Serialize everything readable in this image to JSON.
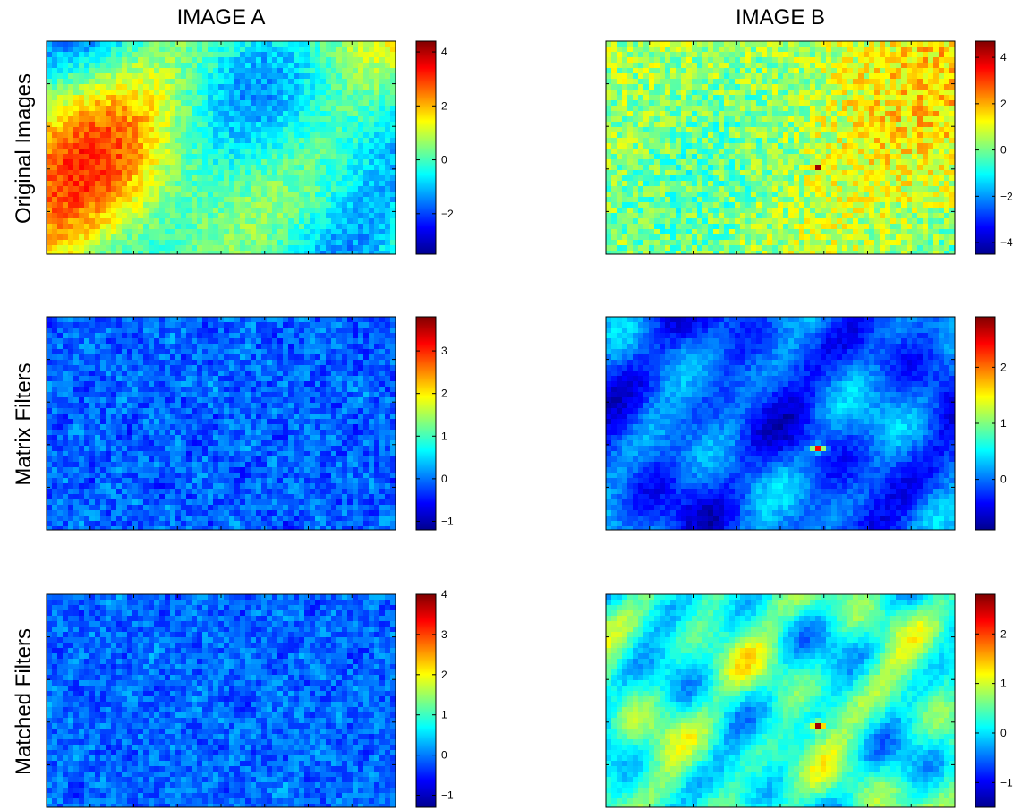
{
  "figure": {
    "column_titles": [
      "IMAGE A",
      "IMAGE B"
    ],
    "row_labels": [
      "Original Images",
      "Matrix Filters",
      "Matched Filters"
    ]
  },
  "chart_data": [
    {
      "type": "heatmap",
      "row": "Original Images",
      "column": "IMAGE A",
      "colorbar": {
        "clim": [
          -3.5,
          4.4
        ],
        "ticks": [
          4,
          2,
          0,
          -2
        ],
        "tick_labels": [
          "4",
          "2",
          "0",
          "−2"
        ]
      },
      "description_values": {
        "background_level": 0.3,
        "features": "large-scale correlated field with hot spots up to ~4 and cold regions down to ~-3"
      }
    },
    {
      "type": "heatmap",
      "row": "Original Images",
      "column": "IMAGE B",
      "colorbar": {
        "clim": [
          -4.5,
          4.7
        ],
        "ticks": [
          4,
          2,
          0,
          -2,
          -4
        ],
        "tick_labels": [
          "4",
          "2",
          "0",
          "−2",
          "−4"
        ]
      },
      "description_values": {
        "background_level": 0.5,
        "features": "noisy field with weak structure and a point source near ~3"
      }
    },
    {
      "type": "heatmap",
      "row": "Matrix Filters",
      "column": "IMAGE A",
      "colorbar": {
        "clim": [
          -1.2,
          3.8
        ],
        "ticks": [
          3,
          2,
          1,
          0,
          -1
        ],
        "tick_labels": [
          "3",
          "2",
          "1",
          "0",
          "−1"
        ]
      },
      "description_values": {
        "background_level": -0.1,
        "features": "fine-grained uniform noise"
      }
    },
    {
      "type": "heatmap",
      "row": "Matrix Filters",
      "column": "IMAGE B",
      "colorbar": {
        "clim": [
          -0.9,
          2.9
        ],
        "ticks": [
          2,
          1,
          0
        ],
        "tick_labels": [
          "2",
          "1",
          "0"
        ]
      },
      "description_values": {
        "background_level": -0.1,
        "features": "smooth blobs with a single peak near ~2.5"
      }
    },
    {
      "type": "heatmap",
      "row": "Matched Filters",
      "column": "IMAGE A",
      "colorbar": {
        "clim": [
          -1.3,
          4.0
        ],
        "ticks": [
          4,
          3,
          2,
          1,
          0,
          -1
        ],
        "tick_labels": [
          "4",
          "3",
          "2",
          "1",
          "0",
          "−1"
        ]
      },
      "description_values": {
        "background_level": -0.1,
        "features": "fine-grained uniform noise"
      }
    },
    {
      "type": "heatmap",
      "row": "Matched Filters",
      "column": "IMAGE B",
      "colorbar": {
        "clim": [
          -1.5,
          2.8
        ],
        "ticks": [
          2,
          1,
          0,
          -1
        ],
        "tick_labels": [
          "2",
          "1",
          "0",
          "−1"
        ]
      },
      "description_values": {
        "background_level": 0.3,
        "features": "smooth blobs with a single peak near ~2.6"
      }
    }
  ]
}
